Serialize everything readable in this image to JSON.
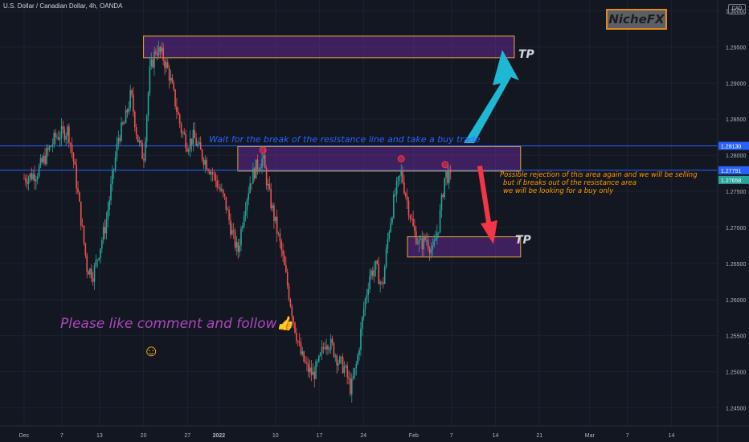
{
  "header": {
    "symbol_title": "U.S. Dollar / Canadian Dollar, 4h, OANDA",
    "currency_badge": "CAD",
    "brand": "NicheFX"
  },
  "annotations": {
    "break_note": "Wait for the break of the resistance line and take a buy trade",
    "rejection_note": [
      "Possible rejection of this area again and we will be selling",
      "but if breaks out of the resistance area",
      "we will be looking for a buy only"
    ],
    "follow_note": "Please like comment and follow",
    "thumb_emoji": "👍",
    "smiley": "☺",
    "tp_upper": "TP",
    "tp_lower": "TP"
  },
  "colors": {
    "background": "#131722",
    "up_candle": "#26a69a",
    "down_candle": "#ef5350",
    "zone_border": "#e2a63a",
    "zone_fill": "#6a2a9a",
    "horizontal_line": "#2962ff",
    "arrow_up": "#1fb8d3",
    "arrow_down": "#f23645"
  },
  "chart_data": {
    "type": "candlestick",
    "title": "U.S. Dollar / Canadian Dollar, 4h, OANDA",
    "y_axis_ticks": [
      "1.30000",
      "1.29500",
      "1.29000",
      "1.28500",
      "1.28000",
      "1.27500",
      "1.27000",
      "1.26500",
      "1.26000",
      "1.25500",
      "1.25000",
      "1.24500"
    ],
    "y_range": [
      1.2425,
      1.3015
    ],
    "x_axis_ticks": [
      {
        "label": "Dec",
        "day": 0,
        "bold": false
      },
      {
        "label": "7",
        "day": 6,
        "bold": false
      },
      {
        "label": "13",
        "day": 12,
        "bold": false
      },
      {
        "label": "20",
        "day": 19,
        "bold": false
      },
      {
        "label": "27",
        "day": 26,
        "bold": false
      },
      {
        "label": "2022",
        "day": 31,
        "bold": true
      },
      {
        "label": "10",
        "day": 40,
        "bold": false
      },
      {
        "label": "17",
        "day": 47,
        "bold": false
      },
      {
        "label": "24",
        "day": 54,
        "bold": false
      },
      {
        "label": "Feb",
        "day": 62,
        "bold": false
      },
      {
        "label": "7",
        "day": 68,
        "bold": false
      },
      {
        "label": "14",
        "day": 75,
        "bold": false
      },
      {
        "label": "21",
        "day": 82,
        "bold": false
      },
      {
        "label": "Mar",
        "day": 90,
        "bold": false
      },
      {
        "label": "7",
        "day": 96,
        "bold": false
      },
      {
        "label": "14",
        "day": 103,
        "bold": false
      }
    ],
    "price_labels": [
      {
        "value": 1.2813,
        "text": "1.28130",
        "bg": "#2962ff"
      },
      {
        "value": 1.27791,
        "text": "1.27791",
        "bg": "#2962ff"
      },
      {
        "value": 1.27658,
        "text": "1.27658",
        "bg": "#26a69a"
      }
    ],
    "horizontal_lines": [
      1.2813,
      1.27791
    ],
    "zones": [
      {
        "name": "upper-tp-zone",
        "day_start": 19,
        "day_end": 78,
        "low": 1.2935,
        "high": 1.2965
      },
      {
        "name": "resistance-zone",
        "day_start": 34,
        "day_end": 79,
        "low": 1.2778,
        "high": 1.2812
      },
      {
        "name": "lower-tp-zone",
        "day_start": 61,
        "day_end": 79,
        "low": 1.2659,
        "high": 1.2687
      }
    ],
    "rejection_markers": [
      {
        "day": 38,
        "price": 1.2807
      },
      {
        "day": 60,
        "price": 1.2795
      },
      {
        "day": 67,
        "price": 1.2787
      }
    ],
    "path_points": [
      {
        "day": 0,
        "price": 1.2768
      },
      {
        "day": 2,
        "price": 1.2775
      },
      {
        "day": 5,
        "price": 1.2825
      },
      {
        "day": 7,
        "price": 1.2835
      },
      {
        "day": 8,
        "price": 1.2785
      },
      {
        "day": 10,
        "price": 1.2645
      },
      {
        "day": 11,
        "price": 1.2635
      },
      {
        "day": 13,
        "price": 1.2705
      },
      {
        "day": 15,
        "price": 1.2825
      },
      {
        "day": 16,
        "price": 1.2845
      },
      {
        "day": 17,
        "price": 1.2885
      },
      {
        "day": 18,
        "price": 1.2825
      },
      {
        "day": 19,
        "price": 1.2795
      },
      {
        "day": 20,
        "price": 1.2915
      },
      {
        "day": 21,
        "price": 1.2948
      },
      {
        "day": 22,
        "price": 1.2938
      },
      {
        "day": 23,
        "price": 1.2915
      },
      {
        "day": 24,
        "price": 1.2875
      },
      {
        "day": 25,
        "price": 1.2835
      },
      {
        "day": 26,
        "price": 1.2815
      },
      {
        "day": 27,
        "price": 1.2825
      },
      {
        "day": 28,
        "price": 1.2805
      },
      {
        "day": 30,
        "price": 1.2775
      },
      {
        "day": 32,
        "price": 1.2735
      },
      {
        "day": 33,
        "price": 1.2695
      },
      {
        "day": 34,
        "price": 1.2665
      },
      {
        "day": 35,
        "price": 1.2725
      },
      {
        "day": 36,
        "price": 1.2765
      },
      {
        "day": 37,
        "price": 1.2785
      },
      {
        "day": 38,
        "price": 1.2795
      },
      {
        "day": 39,
        "price": 1.2745
      },
      {
        "day": 40,
        "price": 1.2705
      },
      {
        "day": 41,
        "price": 1.2665
      },
      {
        "day": 42,
        "price": 1.2615
      },
      {
        "day": 43,
        "price": 1.2565
      },
      {
        "day": 44,
        "price": 1.2525
      },
      {
        "day": 45,
        "price": 1.2505
      },
      {
        "day": 46,
        "price": 1.2495
      },
      {
        "day": 47,
        "price": 1.2515
      },
      {
        "day": 48,
        "price": 1.2545
      },
      {
        "day": 49,
        "price": 1.2535
      },
      {
        "day": 50,
        "price": 1.2515
      },
      {
        "day": 51,
        "price": 1.2505
      },
      {
        "day": 52,
        "price": 1.2475
      },
      {
        "day": 53,
        "price": 1.2515
      },
      {
        "day": 54,
        "price": 1.2585
      },
      {
        "day": 55,
        "price": 1.2635
      },
      {
        "day": 56,
        "price": 1.2645
      },
      {
        "day": 57,
        "price": 1.2615
      },
      {
        "day": 58,
        "price": 1.2695
      },
      {
        "day": 59,
        "price": 1.2745
      },
      {
        "day": 60,
        "price": 1.2775
      },
      {
        "day": 61,
        "price": 1.2735
      },
      {
        "day": 62,
        "price": 1.2695
      },
      {
        "day": 63,
        "price": 1.2675
      },
      {
        "day": 64,
        "price": 1.2685
      },
      {
        "day": 65,
        "price": 1.2665
      },
      {
        "day": 66,
        "price": 1.2705
      },
      {
        "day": 67,
        "price": 1.2775
      },
      {
        "day": 68,
        "price": 1.2766
      }
    ]
  }
}
